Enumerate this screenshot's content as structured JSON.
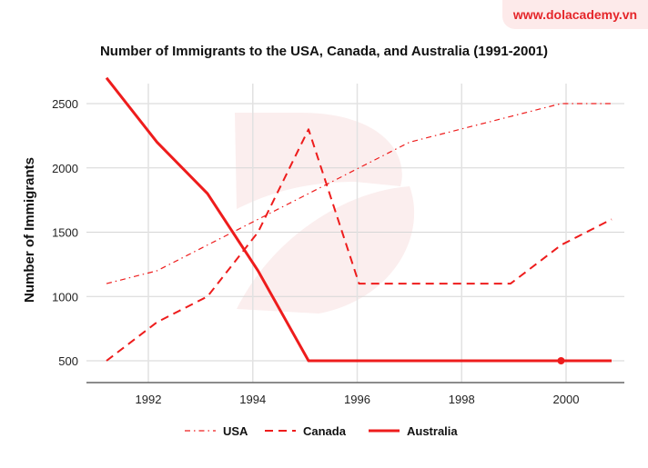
{
  "brand": "www.dolacademy.vn",
  "chart_data": {
    "type": "line",
    "title": "Number of Immigrants to the USA, Canada, and Australia (1991-2001)",
    "xlabel": "",
    "ylabel": "Number of Immigrants",
    "x": [
      1991,
      1992,
      1993,
      1994,
      1995,
      1996,
      1997,
      1998,
      1999,
      2000,
      2001
    ],
    "x_ticks": [
      1992,
      1994,
      1996,
      1998,
      2000
    ],
    "y_ticks": [
      500,
      1000,
      1500,
      2000,
      2500
    ],
    "grid": true,
    "legend": "bottom",
    "series": [
      {
        "name": "USA",
        "style": "dash-dot",
        "color": "#ee1c1c",
        "values": [
          1100,
          1200,
          1400,
          1600,
          1800,
          2000,
          2200,
          2300,
          2400,
          2500,
          2500
        ]
      },
      {
        "name": "Canada",
        "style": "dashed",
        "color": "#ee1c1c",
        "values": [
          500,
          800,
          1000,
          1500,
          2300,
          1100,
          1100,
          1100,
          1100,
          1400,
          1600
        ]
      },
      {
        "name": "Australia",
        "style": "solid",
        "color": "#ee1c1c",
        "values": [
          2700,
          2200,
          1800,
          1200,
          500,
          500,
          500,
          500,
          500,
          500,
          500
        ]
      }
    ],
    "highlight": {
      "series": "Australia",
      "x": 2000,
      "y": 500
    }
  }
}
